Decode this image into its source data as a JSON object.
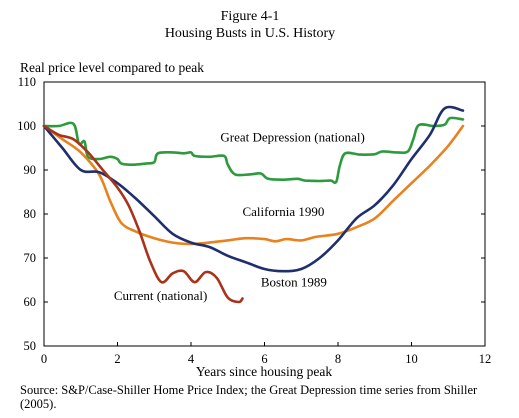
{
  "figure": {
    "title": "Figure 4-1",
    "subtitle": "Housing Busts in U.S. History"
  },
  "source_note": "Source: S&P/Case-Shiller Home Price Index; the Great Depression time series from Shiller (2005).",
  "chart_data": {
    "type": "line",
    "title": "Figure 4-1",
    "subtitle": "Housing Busts in U.S. History",
    "xlabel": "Years since housing peak",
    "ylabel": "Real price level compared to peak",
    "xlim": [
      0,
      12
    ],
    "ylim": [
      50,
      110
    ],
    "xticks": [
      0,
      2,
      4,
      6,
      8,
      10,
      12
    ],
    "yticks": [
      50,
      60,
      70,
      80,
      90,
      100,
      110
    ],
    "grid": false,
    "legend": "none",
    "series": [
      {
        "name": "Great Depression (national)",
        "color": "#2e9a3e",
        "points": [
          [
            0,
            100
          ],
          [
            0.4,
            100
          ],
          [
            0.8,
            100.5
          ],
          [
            0.95,
            96
          ],
          [
            1.1,
            96.5
          ],
          [
            1.2,
            93
          ],
          [
            1.5,
            92.5
          ],
          [
            1.8,
            93
          ],
          [
            2.0,
            92.5
          ],
          [
            2.1,
            91.5
          ],
          [
            2.4,
            91.2
          ],
          [
            2.8,
            91.5
          ],
          [
            3.0,
            91.8
          ],
          [
            3.1,
            93.8
          ],
          [
            3.5,
            94
          ],
          [
            3.8,
            93.8
          ],
          [
            4.0,
            94
          ],
          [
            4.1,
            93.2
          ],
          [
            4.5,
            93
          ],
          [
            4.9,
            93.2
          ],
          [
            5.0,
            91.2
          ],
          [
            5.2,
            89
          ],
          [
            5.6,
            89
          ],
          [
            5.9,
            89.2
          ],
          [
            6.1,
            88
          ],
          [
            6.5,
            87.8
          ],
          [
            6.9,
            88
          ],
          [
            7.1,
            87.6
          ],
          [
            7.5,
            87.5
          ],
          [
            7.8,
            87.6
          ],
          [
            7.95,
            87.3
          ],
          [
            8.05,
            91
          ],
          [
            8.2,
            93.8
          ],
          [
            8.6,
            93.5
          ],
          [
            9.0,
            93.6
          ],
          [
            9.2,
            94.2
          ],
          [
            9.6,
            94
          ],
          [
            9.9,
            94.2
          ],
          [
            10.05,
            97
          ],
          [
            10.2,
            100.2
          ],
          [
            10.6,
            100
          ],
          [
            10.9,
            100.3
          ],
          [
            11.05,
            101.8
          ],
          [
            11.4,
            101.5
          ]
        ]
      },
      {
        "name": "California 1990",
        "color": "#e8821e",
        "points": [
          [
            0,
            100
          ],
          [
            0.5,
            97
          ],
          [
            1.0,
            94
          ],
          [
            1.5,
            89
          ],
          [
            1.8,
            83
          ],
          [
            2.1,
            78
          ],
          [
            2.5,
            76
          ],
          [
            3.0,
            74.5
          ],
          [
            3.5,
            73.5
          ],
          [
            4.0,
            73.2
          ],
          [
            4.5,
            73.5
          ],
          [
            5.0,
            74
          ],
          [
            5.5,
            74.5
          ],
          [
            6.0,
            74.3
          ],
          [
            6.3,
            73.8
          ],
          [
            6.6,
            74.3
          ],
          [
            7.0,
            74
          ],
          [
            7.4,
            74.8
          ],
          [
            8.0,
            75.5
          ],
          [
            8.5,
            77
          ],
          [
            9.0,
            79
          ],
          [
            9.5,
            83
          ],
          [
            10.0,
            87
          ],
          [
            10.5,
            91
          ],
          [
            11.0,
            95.5
          ],
          [
            11.4,
            100
          ]
        ]
      },
      {
        "name": "Boston 1989",
        "color": "#1f2f6e",
        "points": [
          [
            0,
            100
          ],
          [
            0.5,
            95
          ],
          [
            1.0,
            90
          ],
          [
            1.5,
            89.5
          ],
          [
            2.0,
            87
          ],
          [
            2.5,
            83.5
          ],
          [
            3.0,
            79.5
          ],
          [
            3.5,
            75.5
          ],
          [
            4.0,
            73.5
          ],
          [
            4.5,
            72.5
          ],
          [
            5.0,
            70.5
          ],
          [
            5.5,
            69
          ],
          [
            6.0,
            67.5
          ],
          [
            6.5,
            67
          ],
          [
            7.0,
            67.5
          ],
          [
            7.5,
            70
          ],
          [
            8.0,
            74
          ],
          [
            8.5,
            79
          ],
          [
            9.0,
            82
          ],
          [
            9.5,
            86.5
          ],
          [
            10.0,
            92.5
          ],
          [
            10.5,
            98
          ],
          [
            10.9,
            104
          ],
          [
            11.4,
            103.5
          ]
        ]
      },
      {
        "name": "Current (national)",
        "color": "#a8331a",
        "points": [
          [
            0,
            100
          ],
          [
            0.4,
            98
          ],
          [
            0.8,
            97
          ],
          [
            1.2,
            94
          ],
          [
            1.6,
            90
          ],
          [
            2.0,
            86
          ],
          [
            2.3,
            82
          ],
          [
            2.6,
            76
          ],
          [
            2.9,
            69
          ],
          [
            3.2,
            64.5
          ],
          [
            3.5,
            66.5
          ],
          [
            3.8,
            67
          ],
          [
            4.1,
            64.5
          ],
          [
            4.4,
            66.8
          ],
          [
            4.7,
            65.5
          ],
          [
            5.0,
            61
          ],
          [
            5.3,
            60
          ],
          [
            5.4,
            60.8
          ]
        ]
      }
    ],
    "annotations": [
      {
        "text": "Great Depression (national)",
        "x": 4.8,
        "y": 96.5,
        "anchor": "start",
        "series": 0
      },
      {
        "text": "California 1990",
        "x": 5.4,
        "y": 79.5,
        "anchor": "start",
        "series": 1
      },
      {
        "text": "Boston 1989",
        "x": 5.9,
        "y": 63.5,
        "anchor": "start",
        "series": 2
      },
      {
        "text": "Current (national)",
        "x": 1.9,
        "y": 60.5,
        "anchor": "start",
        "series": 3
      }
    ]
  }
}
